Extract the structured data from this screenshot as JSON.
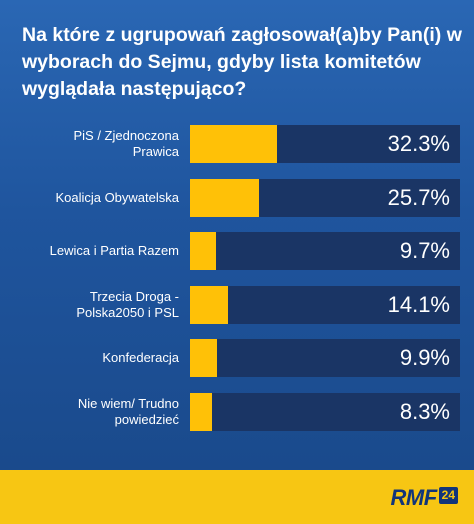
{
  "chart_data": {
    "type": "bar",
    "title": "Na które z ugrupowań zagłosował(a)by Pan(i) w wyborach do Sejmu, gdyby lista komitetów wyglądała następująco?",
    "categories": [
      "PiS / Zjednoczona Prawica",
      "Koalicja Obywatelska",
      "Lewica i Partia Razem",
      "Trzecia Droga - Polska2050 i PSL",
      "Konfederacja",
      "Nie wiem/ Trudno powiedzieć"
    ],
    "label_lines": [
      [
        "PiS / Zjednoczona",
        "Prawica"
      ],
      [
        "Koalicja Obywatelska"
      ],
      [
        "Lewica i Partia Razem"
      ],
      [
        "Trzecia Droga -",
        "Polska2050 i PSL"
      ],
      [
        "Konfederacja"
      ],
      [
        "Nie wiem/ Trudno",
        "powiedzieć"
      ]
    ],
    "values": [
      32.3,
      25.7,
      9.7,
      14.1,
      9.9,
      8.3
    ],
    "value_labels": [
      "32.3%",
      "25.7%",
      "9.7%",
      "14.1%",
      "9.9%",
      "8.3%"
    ],
    "ylim": [
      0,
      100
    ],
    "orientation": "horizontal",
    "colors": {
      "bar": "#ffc107",
      "track": "#1a3565",
      "background": "#1f559e"
    }
  },
  "footer": {
    "logo_text": "RMF",
    "logo_badge": "24",
    "color": "#f7c613"
  }
}
